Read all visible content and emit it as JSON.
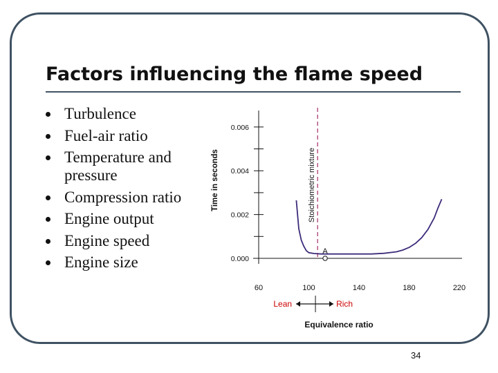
{
  "slide": {
    "title": "Factors influencing the flame speed",
    "bullets": [
      "Turbulence",
      "Fuel-air ratio",
      "Temperature and pressure",
      "Compression ratio",
      "Engine output",
      "Engine speed",
      "Engine size"
    ],
    "page_number": "34"
  },
  "chart_data": {
    "type": "line",
    "title": "",
    "xlabel": "Equivalence ratio",
    "ylabel": "Time in seconds",
    "x_ticks": [
      "60",
      "100",
      "140",
      "180",
      "220"
    ],
    "y_ticks": [
      "0.000",
      "0.002",
      "0.004",
      "0.006"
    ],
    "xlim": [
      60,
      220
    ],
    "ylim": [
      0,
      0.0065
    ],
    "series": [
      {
        "x": [
          90,
          92,
          94,
          96,
          98,
          100,
          104,
          110,
          120,
          130,
          140,
          150,
          160,
          170,
          175,
          180,
          185,
          190,
          195,
          200,
          203,
          206
        ],
        "y": [
          0.00265,
          0.00135,
          0.00083,
          0.00055,
          0.00035,
          0.00026,
          0.00022,
          0.0002,
          0.0002,
          0.0002,
          0.0002,
          0.0002,
          0.00023,
          0.0003,
          0.00038,
          0.0005,
          0.00068,
          0.00094,
          0.00132,
          0.00185,
          0.0023,
          0.0027
        ],
        "color": "#3d2b7a"
      }
    ],
    "annotations": {
      "stoichiometric_label": "Stoichiometric mixture",
      "stoichiometric_x": 107,
      "point_label": "A",
      "point_x": 113,
      "point_y": 0,
      "lean_label": "Lean",
      "rich_label": "Rich",
      "lean_color": "#cc0000",
      "rich_color": "#cc0000",
      "stoich_color": "#b0487a"
    },
    "grid": false
  }
}
